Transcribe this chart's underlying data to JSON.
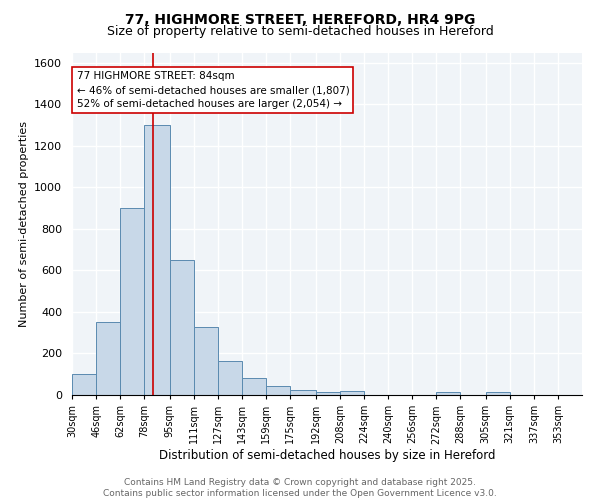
{
  "title_line1": "77, HIGHMORE STREET, HEREFORD, HR4 9PG",
  "title_line2": "Size of property relative to semi-detached houses in Hereford",
  "xlabel": "Distribution of semi-detached houses by size in Hereford",
  "ylabel": "Number of semi-detached properties",
  "bar_color": "#c8d8e8",
  "bar_edge_color": "#5a8ab0",
  "background_color": "#f0f4f8",
  "grid_color": "white",
  "bin_labels": [
    "30sqm",
    "46sqm",
    "62sqm",
    "78sqm",
    "95sqm",
    "111sqm",
    "127sqm",
    "143sqm",
    "159sqm",
    "175sqm",
    "192sqm",
    "208sqm",
    "224sqm",
    "240sqm",
    "256sqm",
    "272sqm",
    "288sqm",
    "305sqm",
    "321sqm",
    "337sqm",
    "353sqm"
  ],
  "bin_edges": [
    30,
    46,
    62,
    78,
    95,
    111,
    127,
    143,
    159,
    175,
    192,
    208,
    224,
    240,
    256,
    272,
    288,
    305,
    321,
    337,
    353
  ],
  "bar_heights": [
    100,
    350,
    900,
    1300,
    650,
    330,
    165,
    80,
    45,
    25,
    15,
    20,
    0,
    0,
    0,
    15,
    0,
    15,
    0,
    0
  ],
  "ylim": [
    0,
    1650
  ],
  "yticks": [
    0,
    200,
    400,
    600,
    800,
    1000,
    1200,
    1400,
    1600
  ],
  "property_sqm": 84,
  "red_line_color": "#cc0000",
  "annotation_text": "77 HIGHMORE STREET: 84sqm\n← 46% of semi-detached houses are smaller (1,807)\n52% of semi-detached houses are larger (2,054) →",
  "annotation_box_color": "white",
  "annotation_box_edge_color": "#cc0000",
  "footer_text": "Contains HM Land Registry data © Crown copyright and database right 2025.\nContains public sector information licensed under the Open Government Licence v3.0.",
  "footer_color": "#666666",
  "title_fontsize": 10,
  "subtitle_fontsize": 9,
  "annotation_fontsize": 7.5,
  "footer_fontsize": 6.5,
  "ylabel_fontsize": 8,
  "xlabel_fontsize": 8.5,
  "ytick_fontsize": 8,
  "xtick_fontsize": 7
}
